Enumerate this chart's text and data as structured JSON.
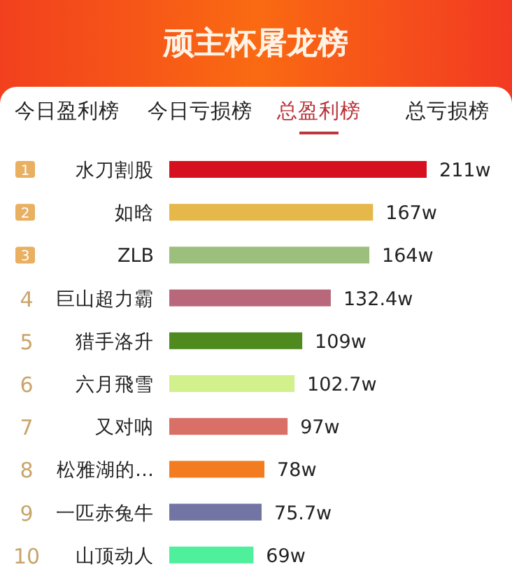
{
  "chart_data": {
    "type": "bar",
    "orientation": "horizontal",
    "title": "顽主杯屠龙榜",
    "annotations": [
      "今日盈利榜",
      "今日亏损榜",
      "总盈利榜",
      "总亏损榜",
      "1",
      "2",
      "3",
      "4",
      "5",
      "6",
      "7",
      "8",
      "9",
      "10"
    ],
    "categories": [
      "水刀割股",
      "如晗",
      "ZLB",
      "巨山超力霸",
      "猎手洛升",
      "六月飛雪",
      "又对呐",
      "松雅湖的…",
      "一匹赤兔牛",
      "山顶动人"
    ],
    "values": [
      211,
      167,
      164,
      132.4,
      109,
      102.7,
      97,
      78,
      75.7,
      69
    ],
    "value_labels": [
      "211w",
      "167w",
      "164w",
      "132.4w",
      "109w",
      "102.7w",
      "97w",
      "78w",
      "75.7w",
      "69w"
    ],
    "colors": [
      "#d6101e",
      "#e6b84a",
      "#9cbf7e",
      "#b8687a",
      "#4e8a1e",
      "#d2f08c",
      "#d87068",
      "#f47c20",
      "#7275a4",
      "#4ef09c"
    ]
  }
}
